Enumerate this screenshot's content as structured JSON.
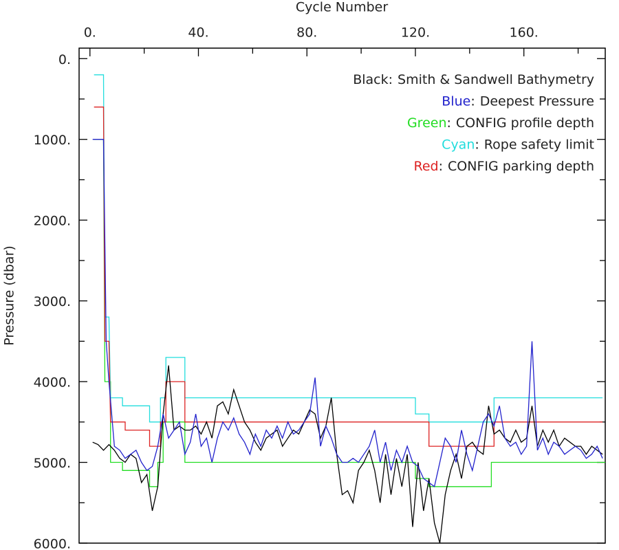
{
  "chart_data": {
    "type": "line",
    "x_label": "Cycle Number",
    "y_label": "Pressure (dbar)",
    "xlim": [
      -4,
      190
    ],
    "ylim": [
      -130,
      6000
    ],
    "invert_y": true,
    "xticks": [
      {
        "value": 0,
        "label": "0."
      },
      {
        "value": 40,
        "label": "40."
      },
      {
        "value": 80,
        "label": "80."
      },
      {
        "value": 120,
        "label": "120."
      },
      {
        "value": 160,
        "label": "160."
      }
    ],
    "xticks_minor": [
      20,
      60,
      100,
      140,
      180
    ],
    "yticks": [
      {
        "value": 0,
        "label": "0."
      },
      {
        "value": 1000,
        "label": "1000."
      },
      {
        "value": 2000,
        "label": "2000."
      },
      {
        "value": 3000,
        "label": "3000."
      },
      {
        "value": 4000,
        "label": "4000."
      },
      {
        "value": 5000,
        "label": "5000."
      },
      {
        "value": 6000,
        "label": "6000."
      }
    ],
    "yticks_minor": [
      500,
      1500,
      2500,
      3500,
      4500,
      5500
    ],
    "legend_separator": ":",
    "legend_position": "upper right",
    "series": [
      {
        "name": "Smith & Sandwell Bathymetry",
        "color_name": "Black",
        "color": "#000000",
        "x": [
          1,
          3,
          5,
          7,
          9,
          11,
          13,
          15,
          17,
          19,
          21,
          23,
          25,
          27,
          29,
          31,
          33,
          35,
          37,
          39,
          41,
          43,
          45,
          47,
          49,
          51,
          53,
          55,
          57,
          59,
          61,
          63,
          65,
          67,
          69,
          71,
          73,
          75,
          77,
          79,
          81,
          83,
          85,
          87,
          89,
          91,
          93,
          95,
          97,
          99,
          101,
          103,
          105,
          107,
          109,
          111,
          113,
          115,
          117,
          119,
          121,
          123,
          125,
          127,
          129,
          131,
          133,
          135,
          137,
          139,
          141,
          143,
          145,
          147,
          149,
          151,
          153,
          155,
          157,
          159,
          161,
          163,
          165,
          167,
          169,
          171,
          173,
          175,
          177,
          179,
          181,
          183,
          185,
          187,
          189
        ],
        "values": [
          4750,
          4780,
          4850,
          4780,
          4850,
          4950,
          5000,
          4900,
          4950,
          5250,
          5150,
          5600,
          5300,
          4400,
          3800,
          4600,
          4550,
          4600,
          4600,
          4550,
          4650,
          4500,
          4700,
          4300,
          4250,
          4400,
          4100,
          4300,
          4500,
          4600,
          4750,
          4850,
          4700,
          4650,
          4600,
          4800,
          4700,
          4600,
          4650,
          4500,
          4350,
          4400,
          4700,
          4550,
          4200,
          4900,
          5400,
          5350,
          5500,
          5100,
          5000,
          4850,
          5100,
          5500,
          4900,
          5400,
          4950,
          5300,
          4900,
          5800,
          5000,
          5600,
          5200,
          5750,
          6000,
          5400,
          5100,
          4900,
          5200,
          4800,
          4750,
          4850,
          4900,
          4300,
          4650,
          4600,
          4700,
          4750,
          4600,
          4750,
          4700,
          4300,
          4800,
          4600,
          4750,
          4600,
          4800,
          4700,
          4750,
          4800,
          4800,
          4900,
          4800,
          4850,
          4900
        ]
      },
      {
        "name": "Deepest Pressure",
        "color_name": "Blue",
        "color": "#2222cc",
        "x": [
          1,
          5,
          6,
          7,
          9,
          11,
          13,
          15,
          17,
          19,
          21,
          23,
          25,
          27,
          29,
          31,
          33,
          35,
          37,
          39,
          41,
          43,
          45,
          47,
          49,
          51,
          53,
          55,
          57,
          59,
          61,
          63,
          65,
          67,
          69,
          71,
          73,
          75,
          77,
          79,
          81,
          83,
          85,
          87,
          89,
          91,
          93,
          95,
          97,
          99,
          101,
          103,
          105,
          107,
          109,
          111,
          113,
          115,
          117,
          119,
          121,
          123,
          125,
          127,
          129,
          131,
          133,
          135,
          137,
          139,
          141,
          143,
          145,
          147,
          149,
          151,
          153,
          155,
          157,
          159,
          161,
          163,
          165,
          167,
          169,
          171,
          173,
          175,
          177,
          179,
          181,
          183,
          185,
          187,
          189
        ],
        "values": [
          1000,
          1000,
          3500,
          4000,
          4800,
          4850,
          4950,
          4900,
          4850,
          5000,
          5100,
          5050,
          4800,
          4400,
          4700,
          4600,
          4500,
          4900,
          4750,
          4400,
          4800,
          4700,
          5000,
          4700,
          4500,
          4600,
          4450,
          4650,
          4750,
          4900,
          4650,
          4800,
          4600,
          4700,
          4550,
          4700,
          4500,
          4650,
          4600,
          4500,
          4400,
          3950,
          4800,
          4550,
          4700,
          4900,
          5000,
          5000,
          4950,
          5000,
          4900,
          4800,
          4600,
          5000,
          4750,
          5100,
          4850,
          5000,
          4800,
          5000,
          5050,
          5200,
          5250,
          5300,
          5000,
          4700,
          4800,
          5000,
          4600,
          4900,
          5100,
          4800,
          4500,
          4400,
          4550,
          4300,
          4700,
          4800,
          4750,
          4900,
          4800,
          3500,
          4850,
          4700,
          4900,
          4750,
          4800,
          4900,
          4850,
          4800,
          4850,
          4950,
          4900,
          4800,
          4950
        ]
      },
      {
        "name": "CONFIG profile depth",
        "color_name": "Green",
        "color": "#22dd22",
        "x": [
          1.5,
          5,
          5.5,
          7.6,
          7.6,
          12,
          12,
          22,
          22,
          25,
          25,
          27,
          27,
          35,
          35,
          120,
          120,
          125,
          125,
          148,
          148,
          190
        ],
        "values": [
          1000,
          1000,
          4000,
          4000,
          5000,
          5000,
          5100,
          5100,
          5300,
          5300,
          5000,
          5000,
          4500,
          4500,
          5000,
          5000,
          5200,
          5200,
          5300,
          5300,
          5000,
          5000
        ]
      },
      {
        "name": "Rope safety limit",
        "color_name": "Cyan",
        "color": "#22dddd",
        "x": [
          1.5,
          5,
          5.5,
          7,
          7.6,
          12,
          12,
          22,
          22,
          26,
          26,
          28,
          28,
          35,
          35,
          120,
          120,
          125,
          125,
          149,
          149,
          189
        ],
        "values": [
          200,
          200,
          3200,
          3200,
          4200,
          4200,
          4300,
          4300,
          4500,
          4500,
          4200,
          4200,
          3700,
          3700,
          4200,
          4200,
          4400,
          4400,
          4500,
          4500,
          4200,
          4200
        ]
      },
      {
        "name": "CONFIG parking depth",
        "color_name": "Red",
        "color": "#dd2222",
        "x": [
          1.5,
          5,
          5.5,
          7,
          7.6,
          13,
          13,
          22,
          22,
          26,
          26,
          28,
          28,
          35,
          35,
          125,
          125,
          149,
          149,
          189
        ],
        "values": [
          600,
          600,
          3500,
          3500,
          4500,
          4500,
          4600,
          4600,
          4800,
          4800,
          4500,
          4500,
          4000,
          4000,
          4500,
          4500,
          4800,
          4800,
          4500,
          4500
        ]
      }
    ]
  }
}
